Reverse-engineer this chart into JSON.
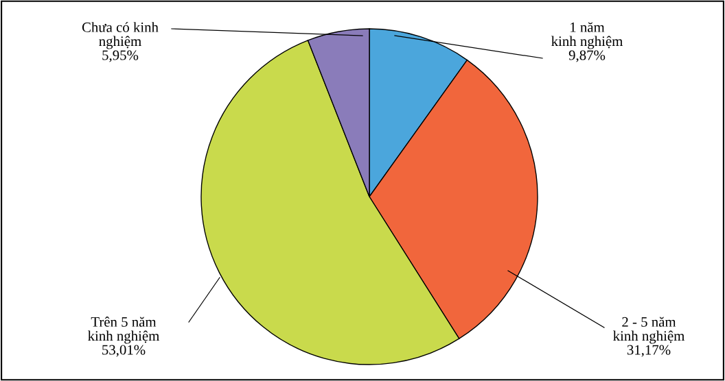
{
  "chart_data": {
    "type": "pie",
    "categories": [
      "1 năm\nkinh nghiệm",
      "2 - 5 năm\nkinh nghiệm",
      "Trên 5 năm\nkinh nghiệm",
      "Chưa có kinh\nnghiệm"
    ],
    "values": [
      9.87,
      31.17,
      53.01,
      5.95
    ],
    "value_labels": [
      "9,87%",
      "31,17%",
      "53,01%",
      "5,95%"
    ],
    "colors": [
      "#4ba6dc",
      "#f1663c",
      "#c9da4c",
      "#8a7cba"
    ],
    "legend": false
  }
}
